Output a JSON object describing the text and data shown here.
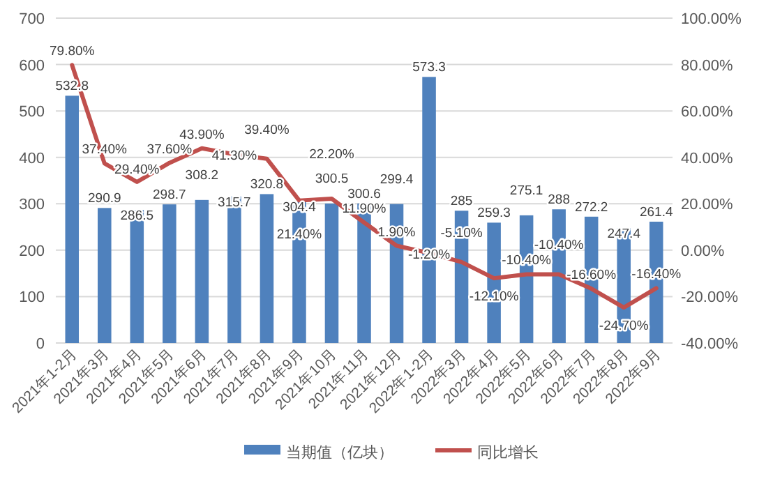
{
  "chart_data": {
    "type": "bar",
    "categories": [
      "2021年1-2月",
      "2021年3月",
      "2021年4月",
      "2021年5月",
      "2021年6月",
      "2021年7月",
      "2021年8月",
      "2021年9月",
      "2021年10月",
      "2021年11月",
      "2021年12月",
      "2022年1-2月",
      "2022年3月",
      "2022年4月",
      "2022年5月",
      "2022年6月",
      "2022年7月",
      "2022年8月",
      "2022年9月"
    ],
    "series": [
      {
        "name": "当期值（亿块）",
        "color": "#4f81bd",
        "values": [
          532.8,
          290.9,
          286.5,
          298.7,
          308.2,
          315.7,
          320.8,
          304.4,
          300.5,
          300.6,
          299.4,
          573.3,
          285,
          259.3,
          275.1,
          288,
          272.2,
          247.4,
          261.4
        ],
        "value_labels": [
          "532.8",
          "290.9",
          "286.5",
          "298.7",
          "308.2",
          "315.7",
          "320.8",
          "304.4",
          "300.5",
          "300.6",
          "299.4",
          "573.3",
          "285",
          "259.3",
          "275.1",
          "288",
          "272.2",
          "247.4",
          "261.4"
        ]
      },
      {
        "name": "同比增长",
        "type": "line",
        "axis": "y2",
        "color": "#c0504d",
        "values": [
          79.8,
          37.4,
          29.4,
          37.6,
          43.9,
          41.3,
          39.4,
          21.4,
          22.2,
          11.9,
          1.9,
          -1.2,
          -5.1,
          -12.1,
          -10.4,
          -10.4,
          -16.6,
          -24.7,
          -16.4
        ],
        "value_labels": [
          "79.80%",
          "37.40%",
          "29.40%",
          "37.60%",
          "43.90%",
          "41.30%",
          "39.40%",
          "21.40%",
          "22.20%",
          "11.90%",
          "1.90%",
          "-1.20%",
          "-5.10%",
          "-12.10%",
          "-10.40%",
          "-10.40%",
          "-16.60%",
          "-24.70%",
          "-16.40%"
        ]
      }
    ],
    "ylim": [
      0,
      700
    ],
    "yticks": [
      0,
      100,
      200,
      300,
      400,
      500,
      600,
      700
    ],
    "y2lim": [
      -40,
      100
    ],
    "y2ticks": [
      {
        "value": -40,
        "label": "-40.00%"
      },
      {
        "value": -20,
        "label": "-20.00%"
      },
      {
        "value": 0,
        "label": "0.00%"
      },
      {
        "value": 20,
        "label": "20.00%"
      },
      {
        "value": 40,
        "label": "40.00%"
      },
      {
        "value": 60,
        "label": "60.00%"
      },
      {
        "value": 80,
        "label": "80.00%"
      },
      {
        "value": 100,
        "label": "100.00%"
      }
    ],
    "grid": "y",
    "legend": "bottom",
    "line_style": "solid",
    "marker": "none"
  }
}
